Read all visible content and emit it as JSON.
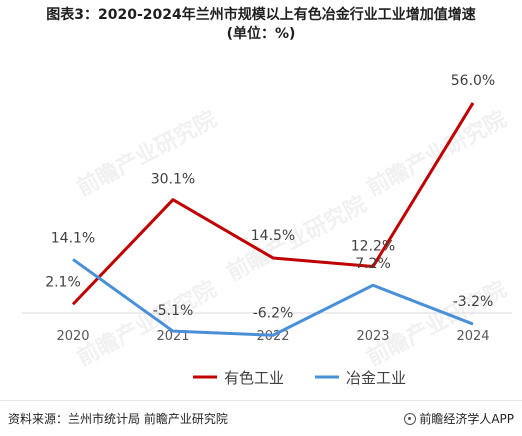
{
  "title_line1": "图表3：2020-2024年兰州市规模以上有色冶金行业工业增加值增速",
  "title_line2": "(单位：%)",
  "chart_data": {
    "type": "line",
    "categories": [
      "2020",
      "2021",
      "2022",
      "2023",
      "2024"
    ],
    "series": [
      {
        "name": "有色工业",
        "values": [
          2.1,
          30.1,
          14.5,
          12.2,
          56.0
        ],
        "labels": [
          "2.1%",
          "30.1%",
          "14.5%",
          "12.2%",
          "56.0%"
        ],
        "color": "#c00000"
      },
      {
        "name": "冶金工业",
        "values": [
          14.1,
          -5.1,
          -6.2,
          7.2,
          -3.2
        ],
        "labels": [
          "14.1%",
          "-5.1%",
          "-6.2%",
          "7.2%",
          "-3.2%"
        ],
        "color": "#4a90d9"
      }
    ],
    "ylim": [
      -8,
      60
    ],
    "grid": false,
    "legend_position": "bottom"
  },
  "watermark": "前瞻产业研究院",
  "footer": {
    "source": "资料来源：兰州市统计局 前瞻产业研究院",
    "brand": "前瞻经济学人APP"
  }
}
